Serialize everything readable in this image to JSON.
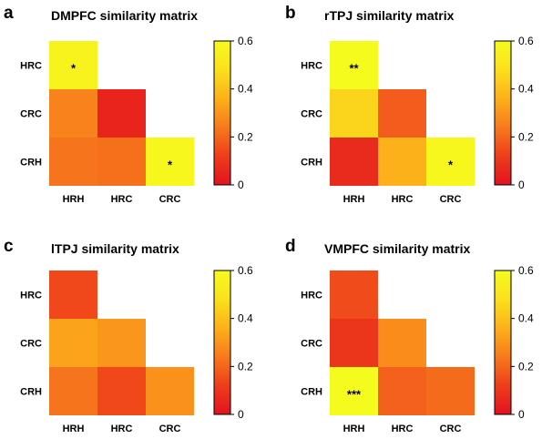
{
  "colorscale": {
    "min": 0,
    "max": 0.6,
    "stops": [
      "#e3121f",
      "#ee3d1b",
      "#f77a1c",
      "#fcb11a",
      "#fbe01c",
      "#f6fb1e"
    ],
    "ticks": [
      "0",
      "0.2",
      "0.4",
      "0.6"
    ]
  },
  "chart_data": [
    {
      "type": "heatmap",
      "panel_label": "a",
      "title": "DMPFC similarity matrix",
      "rows": [
        "HRC",
        "CRC",
        "CRH"
      ],
      "cols": [
        "HRH",
        "HRC",
        "CRC"
      ],
      "cells": [
        {
          "row": "HRC",
          "col": "HRH",
          "value": 0.56,
          "label": "*"
        },
        {
          "row": "CRC",
          "col": "HRH",
          "value": 0.26,
          "label": ""
        },
        {
          "row": "CRC",
          "col": "HRC",
          "value": 0.05,
          "label": ""
        },
        {
          "row": "CRH",
          "col": "HRH",
          "value": 0.23,
          "label": ""
        },
        {
          "row": "CRH",
          "col": "HRC",
          "value": 0.22,
          "label": ""
        },
        {
          "row": "CRH",
          "col": "CRC",
          "value": 0.58,
          "label": "*"
        }
      ]
    },
    {
      "type": "heatmap",
      "panel_label": "b",
      "title": "rTPJ similarity matrix",
      "rows": [
        "HRC",
        "CRC",
        "CRH"
      ],
      "cols": [
        "HRH",
        "HRC",
        "CRC"
      ],
      "cells": [
        {
          "row": "HRC",
          "col": "HRH",
          "value": 0.6,
          "label": "**"
        },
        {
          "row": "CRC",
          "col": "HRH",
          "value": 0.45,
          "label": ""
        },
        {
          "row": "CRC",
          "col": "HRC",
          "value": 0.18,
          "label": ""
        },
        {
          "row": "CRH",
          "col": "HRH",
          "value": 0.07,
          "label": ""
        },
        {
          "row": "CRH",
          "col": "HRC",
          "value": 0.36,
          "label": ""
        },
        {
          "row": "CRH",
          "col": "CRC",
          "value": 0.58,
          "label": "*"
        }
      ]
    },
    {
      "type": "heatmap",
      "panel_label": "c",
      "title": "lTPJ similarity matrix",
      "rows": [
        "HRC",
        "CRC",
        "CRH"
      ],
      "cols": [
        "HRH",
        "HRC",
        "CRC"
      ],
      "cells": [
        {
          "row": "HRC",
          "col": "HRH",
          "value": 0.14,
          "label": ""
        },
        {
          "row": "CRC",
          "col": "HRH",
          "value": 0.33,
          "label": ""
        },
        {
          "row": "CRC",
          "col": "HRC",
          "value": 0.3,
          "label": ""
        },
        {
          "row": "CRH",
          "col": "HRH",
          "value": 0.23,
          "label": ""
        },
        {
          "row": "CRH",
          "col": "HRC",
          "value": 0.14,
          "label": ""
        },
        {
          "row": "CRH",
          "col": "CRC",
          "value": 0.29,
          "label": ""
        }
      ]
    },
    {
      "type": "heatmap",
      "panel_label": "d",
      "title": "VMPFC similarity matrix",
      "rows": [
        "HRC",
        "CRC",
        "CRH"
      ],
      "cols": [
        "HRH",
        "HRC",
        "CRC"
      ],
      "cells": [
        {
          "row": "HRC",
          "col": "HRH",
          "value": 0.15,
          "label": ""
        },
        {
          "row": "CRC",
          "col": "HRH",
          "value": 0.1,
          "label": ""
        },
        {
          "row": "CRC",
          "col": "HRC",
          "value": 0.28,
          "label": ""
        },
        {
          "row": "CRH",
          "col": "HRH",
          "value": 0.6,
          "label": "***"
        },
        {
          "row": "CRH",
          "col": "HRC",
          "value": 0.19,
          "label": ""
        },
        {
          "row": "CRH",
          "col": "CRC",
          "value": 0.21,
          "label": ""
        }
      ]
    }
  ]
}
